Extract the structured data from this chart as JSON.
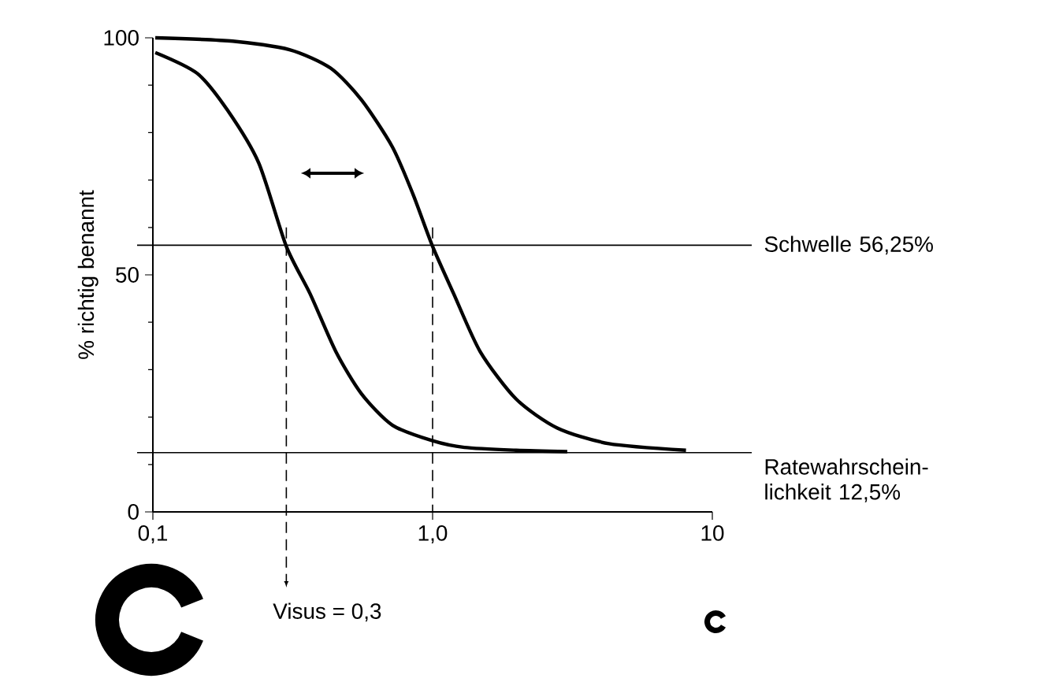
{
  "chart_data": {
    "type": "line",
    "ylabel": "% richtig benannt",
    "log": "x",
    "xlim": [
      0.1,
      10
    ],
    "ylim": [
      0,
      100
    ],
    "xticks": [
      {
        "value": 0.1,
        "label": "0,1"
      },
      {
        "value": 1,
        "label": "1,0"
      },
      10
    ],
    "yticks": [
      0,
      50,
      100
    ],
    "series": [
      {
        "color": "#000000",
        "x": [
          0.102,
          0.144,
          0.185,
          0.239,
          0.3,
          0.365,
          0.451,
          0.557,
          0.718,
          1.0,
          1.3,
          1.99,
          3.03
        ],
        "values": [
          96.9,
          92.5,
          84.7,
          73.6,
          56,
          46.0,
          33.8,
          24.9,
          18.3,
          15.0,
          13.6,
          13.0,
          12.7
        ]
      },
      {
        "color": "#000000",
        "x": [
          0.102,
          0.193,
          0.308,
          0.432,
          0.557,
          0.718,
          0.851,
          1.0,
          1.19,
          1.48,
          1.99,
          2.79,
          4.27,
          8.05
        ],
        "values": [
          100,
          99.3,
          97.5,
          93.6,
          86.9,
          77.0,
          67.0,
          56,
          46.0,
          33.8,
          23.8,
          17.7,
          14.4,
          13.0
        ]
      }
    ],
    "ref_lines": [
      {
        "axis": "y",
        "value": 56.25,
        "label": "Schwelle 56,25%"
      },
      {
        "axis": "y",
        "value": 12.5,
        "label": "Ratewahrschein-lichkeit 12,5%"
      },
      {
        "axis": "x",
        "value": 0.3,
        "label": "Visus = 0,3",
        "line_style": "dashed"
      },
      {
        "axis": "x",
        "value": 1.0,
        "line_style": "dashed"
      }
    ]
  }
}
